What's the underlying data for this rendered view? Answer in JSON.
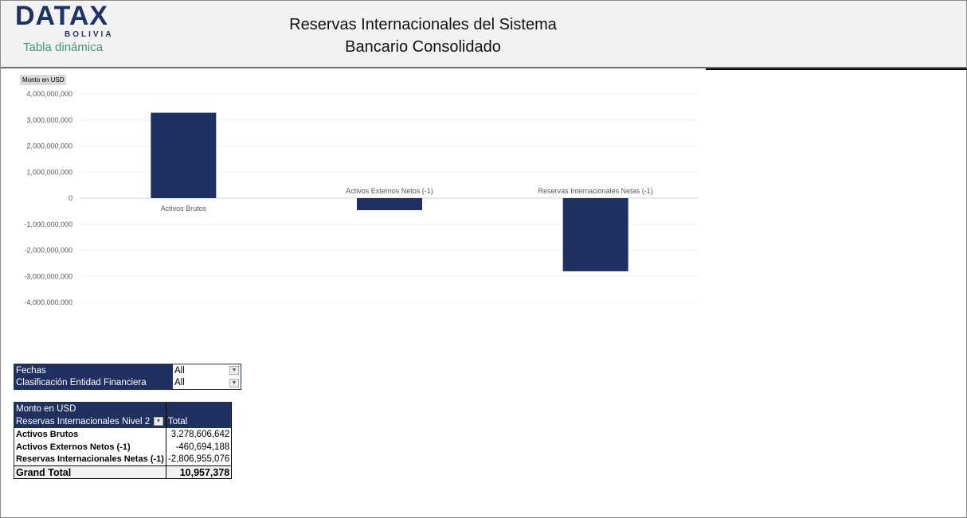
{
  "header": {
    "logo": "DATAX",
    "logo_sub": "BOLIVIA",
    "subtitle": "Tabla dinámica",
    "title_line1": "Reservas Internacionales del Sistema",
    "title_line2": "Bancario Consolidado"
  },
  "chart_data": {
    "type": "bar",
    "ylabel": "Monto en USD",
    "ylim": [
      -4000000000,
      4000000000
    ],
    "yticks": [
      "4,000,000,000",
      "3,000,000,000",
      "2,000,000,000",
      "1,000,000,000",
      "0",
      "-1,000,000,000",
      "-2,000,000,000",
      "-3,000,000,000",
      "-4,000,000,000"
    ],
    "categories": [
      "Activos Brutos",
      "Activos Externos Netos (-1)",
      "Reservas Internacionales Netas (-1)"
    ],
    "values": [
      3278606642,
      -460694188,
      -2806955076
    ],
    "color": "#203060",
    "grid": true,
    "legend": "none"
  },
  "filters": [
    {
      "label": "Fechas",
      "value": "All"
    },
    {
      "label": "Clasificación Entidad Financiera",
      "value": "All"
    }
  ],
  "pivot": {
    "header1": "Monto en USD",
    "row_header": "Reservas Internacionales Nivel 2",
    "col_header": "Total",
    "rows": [
      {
        "label": "Activos Brutos",
        "value": "3,278,606,642"
      },
      {
        "label": "Activos Externos Netos (-1)",
        "value": "-460,694,188"
      },
      {
        "label": "Reservas Internacionales Netas (-1)",
        "value": "-2,806,955,076"
      }
    ],
    "grand_total_label": "Grand Total",
    "grand_total": "10,957,378"
  }
}
